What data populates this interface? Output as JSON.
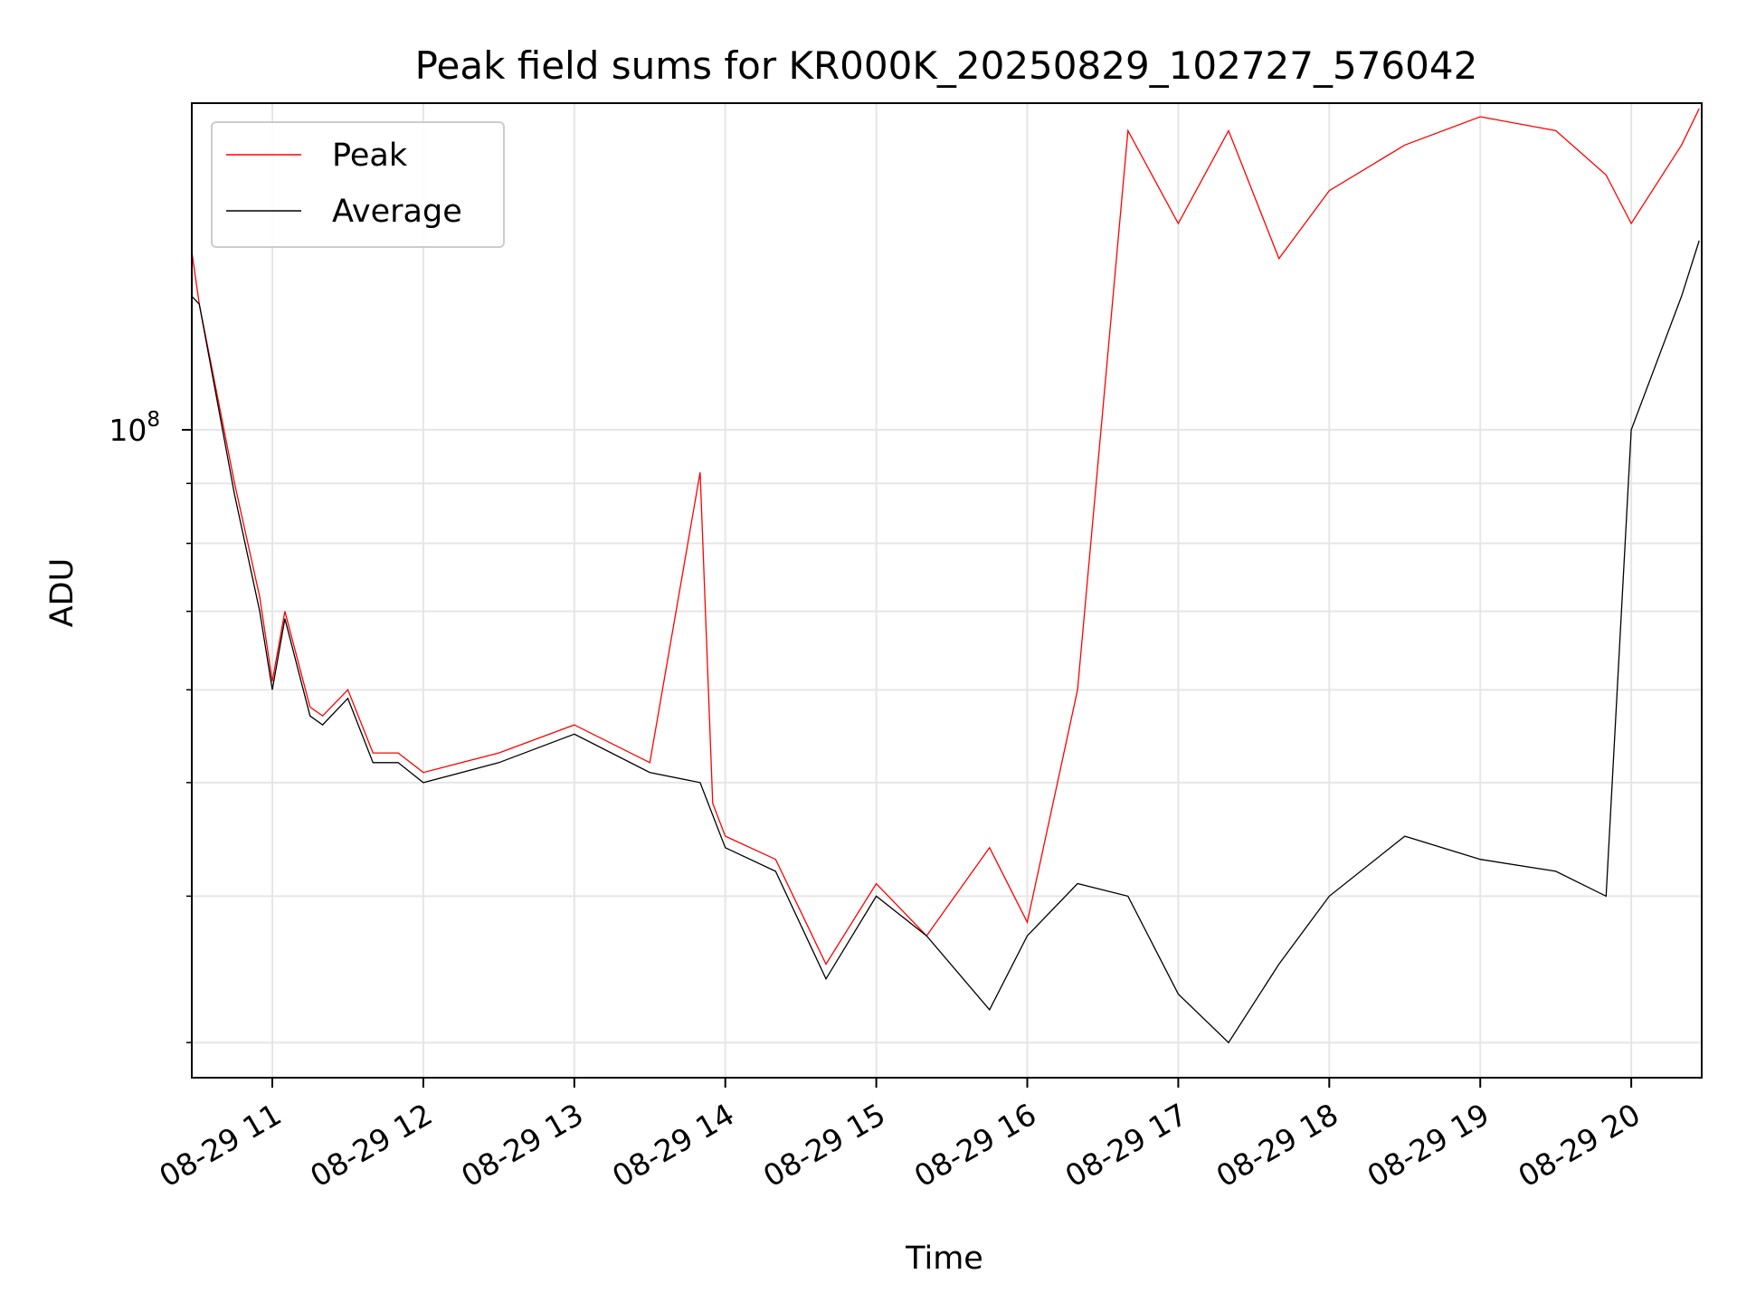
{
  "chart_data": {
    "type": "line",
    "title": "Peak field sums for KR000K_20250829_102727_576042",
    "xlabel": "Time",
    "ylabel": "ADU",
    "y_scale": "log",
    "ylim": [
      28000000,
      190000000
    ],
    "xlim": [
      "08-29 10:28",
      "08-29 20:28"
    ],
    "x_tick_labels": [
      "08-29 11",
      "08-29 12",
      "08-29 13",
      "08-29 14",
      "08-29 15",
      "08-29 16",
      "08-29 17",
      "08-29 18",
      "08-29 19",
      "08-29 20"
    ],
    "y_tick_labels": [
      {
        "base": "10",
        "exp": "8"
      }
    ],
    "grid": true,
    "legend_position": "top-left",
    "series": [
      {
        "name": "Peak",
        "color": "#ff0000",
        "x": [
          "08-29 10:28",
          "08-29 10:31",
          "08-29 10:45",
          "08-29 10:55",
          "08-29 11:00",
          "08-29 11:05",
          "08-29 11:15",
          "08-29 11:20",
          "08-29 11:30",
          "08-29 11:40",
          "08-29 11:50",
          "08-29 12:00",
          "08-29 12:30",
          "08-29 13:00",
          "08-29 13:30",
          "08-29 13:50",
          "08-29 13:55",
          "08-29 14:00",
          "08-29 14:20",
          "08-29 14:40",
          "08-29 15:00",
          "08-29 15:20",
          "08-29 15:45",
          "08-29 16:00",
          "08-29 16:20",
          "08-29 16:40",
          "08-29 17:00",
          "08-29 17:20",
          "08-29 17:40",
          "08-29 18:00",
          "08-29 18:30",
          "08-29 19:00",
          "08-29 19:30",
          "08-29 19:50",
          "08-29 20:00",
          "08-29 20:20",
          "08-29 20:27"
        ],
        "y": [
          142000000,
          128000000,
          90000000,
          72000000,
          61000000,
          70000000,
          58000000,
          57000000,
          60000000,
          53000000,
          53000000,
          51000000,
          53000000,
          56000000,
          52000000,
          92000000,
          48000000,
          45000000,
          43000000,
          35000000,
          41000000,
          37000000,
          44000000,
          38000000,
          60000000,
          180000000,
          150000000,
          180000000,
          140000000,
          160000000,
          175000000,
          185000000,
          180000000,
          165000000,
          150000000,
          175000000,
          188000000
        ]
      },
      {
        "name": "Average",
        "color": "#000000",
        "x": [
          "08-29 10:28",
          "08-29 10:31",
          "08-29 10:45",
          "08-29 10:55",
          "08-29 11:00",
          "08-29 11:05",
          "08-29 11:15",
          "08-29 11:20",
          "08-29 11:30",
          "08-29 11:40",
          "08-29 11:50",
          "08-29 12:00",
          "08-29 12:30",
          "08-29 13:00",
          "08-29 13:30",
          "08-29 13:50",
          "08-29 14:00",
          "08-29 14:20",
          "08-29 14:40",
          "08-29 15:00",
          "08-29 15:20",
          "08-29 15:45",
          "08-29 16:00",
          "08-29 16:20",
          "08-29 16:40",
          "08-29 17:00",
          "08-29 17:20",
          "08-29 17:40",
          "08-29 18:00",
          "08-29 18:30",
          "08-29 19:00",
          "08-29 19:30",
          "08-29 19:50",
          "08-29 20:00",
          "08-29 20:20",
          "08-29 20:27"
        ],
        "y": [
          130000000,
          128000000,
          88000000,
          70000000,
          60000000,
          69000000,
          57000000,
          56000000,
          59000000,
          52000000,
          52000000,
          50000000,
          52000000,
          55000000,
          51000000,
          50000000,
          44000000,
          42000000,
          34000000,
          40000000,
          37000000,
          32000000,
          37000000,
          41000000,
          40000000,
          33000000,
          30000000,
          35000000,
          40000000,
          45000000,
          43000000,
          42000000,
          40000000,
          100000000,
          130000000,
          145000000
        ]
      }
    ]
  }
}
